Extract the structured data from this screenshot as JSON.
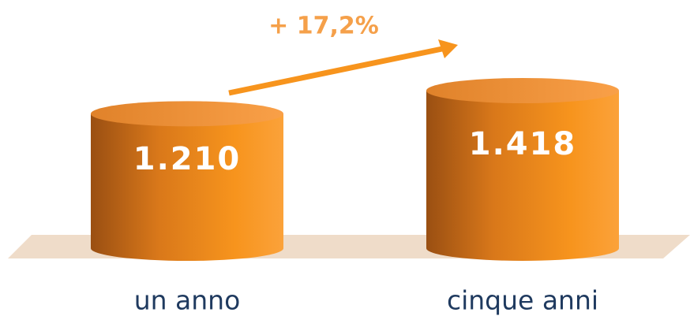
{
  "chart_data": {
    "type": "cylinder",
    "categories": [
      "un anno",
      "cinque anni"
    ],
    "values": [
      1210,
      1418
    ],
    "value_labels": [
      "1.210",
      "1.418"
    ],
    "color": "#f7941d",
    "annotation": "+ 17,2%"
  }
}
